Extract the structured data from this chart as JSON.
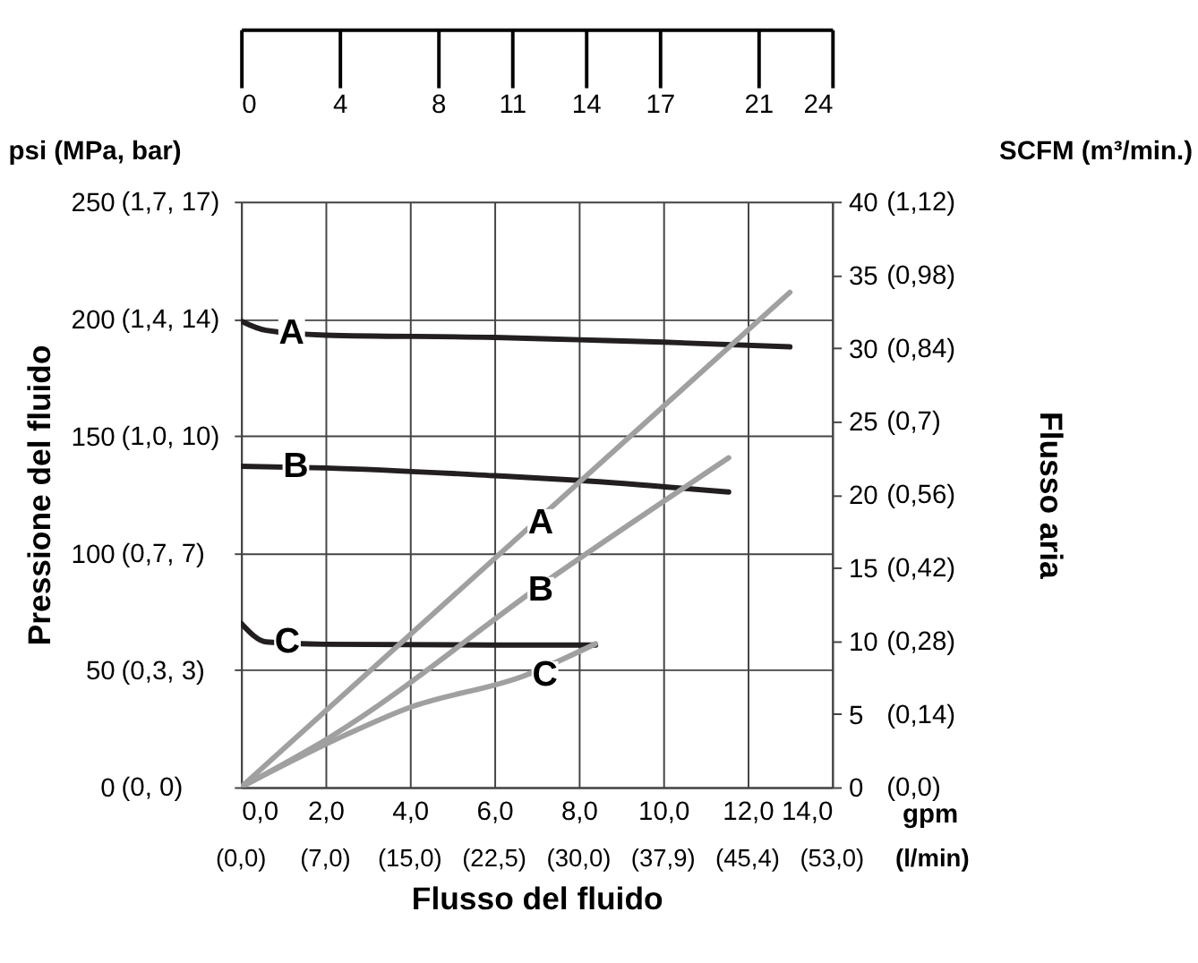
{
  "chart_data": {
    "type": "line",
    "xlabel": "Flusso del fluido",
    "ylabel": "Pressione del fluido",
    "y2label": "Flusso aria",
    "xlim": [
      0,
      14
    ],
    "xticks": [
      {
        "value": 0,
        "label": "0,0"
      },
      {
        "value": 2,
        "label": "2,0"
      },
      {
        "value": 4,
        "label": "4,0"
      },
      {
        "value": 6,
        "label": "6,0"
      },
      {
        "value": 8,
        "label": "8,0"
      },
      {
        "value": 10,
        "label": "10,0"
      },
      {
        "value": 12,
        "label": "12,0"
      },
      {
        "value": 14,
        "label": "14,0"
      }
    ],
    "x2lim": [
      0,
      24
    ],
    "x2ticks": [
      0,
      4,
      8,
      11,
      14,
      17,
      21,
      24
    ],
    "ylim": [
      0,
      250
    ],
    "yticks": [
      0,
      50,
      100,
      150,
      200,
      250
    ],
    "y2lim": [
      0,
      40
    ],
    "y2ticks": [
      0,
      5,
      10,
      15,
      20,
      25,
      30,
      35,
      40
    ],
    "grid": true,
    "series": [
      {
        "color": "#231f20",
        "x": [
          0,
          0.6,
          2,
          6,
          8,
          10,
          13
        ],
        "values": [
          199,
          195,
          193,
          192,
          191,
          190,
          188
        ]
      },
      {
        "color": "#231f20",
        "x": [
          0,
          2,
          6,
          8,
          11.55
        ],
        "values": [
          137,
          136.3,
          133,
          131,
          126
        ]
      },
      {
        "color": "#231f20",
        "x": [
          0,
          0.6,
          2,
          6,
          8.4
        ],
        "values": [
          70,
          62,
          61,
          60.7,
          60.7
        ]
      },
      {
        "color": "#a0a0a0",
        "axis": "y2",
        "x": [
          0,
          13
        ],
        "values": [
          0,
          33.8
        ]
      },
      {
        "color": "#a0a0a0",
        "axis": "y2",
        "x": [
          0,
          2.1,
          7.4,
          11.55
        ],
        "values": [
          0,
          3.4,
          14.4,
          22.5
        ]
      },
      {
        "color": "#a0a0a0",
        "axis": "y2",
        "x": [
          0,
          2.5,
          3.95,
          6.7,
          8.4
        ],
        "values": [
          0,
          3.6,
          5.4,
          7.6,
          9.8
        ]
      }
    ],
    "annotations": [
      "psi (MPa, bar)",
      "SCFM (m³/min.)",
      "gpm",
      "(l/min)",
      "(0,0)",
      "(7,0)",
      "(15,0)",
      "(22,5)",
      "(30,0)",
      "(37,9)",
      "(45,4)",
      "(53,0)",
      "(0, 0)",
      "(0,3, 3)",
      "(0,7, 7)",
      "(1,0, 10)",
      "(1,4, 14)",
      "(1,7, 17)",
      "(0,0)",
      "(0,14)",
      "(0,28)",
      "(0,42)",
      "(0,56)",
      "(0,7)",
      "(0,84)",
      "(0,98)",
      "(1,12)",
      {
        "text": "A",
        "x": 1.2,
        "y": 194
      },
      {
        "text": "B",
        "x": 1.3,
        "y": 137
      },
      {
        "text": "C",
        "x": 1.1,
        "y": 62
      },
      {
        "text": "A",
        "x": 7.1,
        "y": 113
      },
      {
        "text": "B",
        "x": 7.1,
        "y": 84
      },
      {
        "text": "C",
        "x": 7.2,
        "y": 48
      }
    ]
  }
}
